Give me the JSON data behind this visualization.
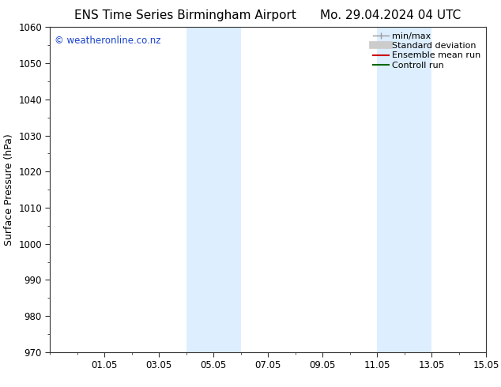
{
  "title_left": "ENS Time Series Birmingham Airport",
  "title_right": "Mo. 29.04.2024 04 UTC",
  "ylabel": "Surface Pressure (hPa)",
  "ylim": [
    970,
    1060
  ],
  "yticks": [
    970,
    980,
    990,
    1000,
    1010,
    1020,
    1030,
    1040,
    1050,
    1060
  ],
  "xlim": [
    0,
    16
  ],
  "xtick_labels": [
    "01.05",
    "03.05",
    "05.05",
    "07.05",
    "09.05",
    "11.05",
    "13.05",
    "15.05"
  ],
  "xtick_positions": [
    2,
    4,
    6,
    8,
    10,
    12,
    14,
    16
  ],
  "shaded_bands": [
    {
      "x_start": 5,
      "x_end": 7
    },
    {
      "x_start": 12,
      "x_end": 14
    }
  ],
  "shaded_color": "#ddeeff",
  "watermark_text": "© weatheronline.co.nz",
  "watermark_color": "#1a44cc",
  "legend_items": [
    {
      "label": "min/max",
      "color": "#999999",
      "linestyle": "-",
      "linewidth": 1.0,
      "type": "line_with_caps"
    },
    {
      "label": "Standard deviation",
      "color": "#cccccc",
      "linestyle": "-",
      "linewidth": 7.0,
      "type": "thick"
    },
    {
      "label": "Ensemble mean run",
      "color": "#cc0000",
      "linestyle": "-",
      "linewidth": 1.5,
      "type": "line"
    },
    {
      "label": "Controll run",
      "color": "#006600",
      "linestyle": "-",
      "linewidth": 1.5,
      "type": "line"
    }
  ],
  "background_color": "#ffffff",
  "tick_color": "#333333",
  "spine_color": "#333333",
  "title_fontsize": 11,
  "legend_fontsize": 8,
  "ylabel_fontsize": 9,
  "tick_fontsize": 8.5
}
